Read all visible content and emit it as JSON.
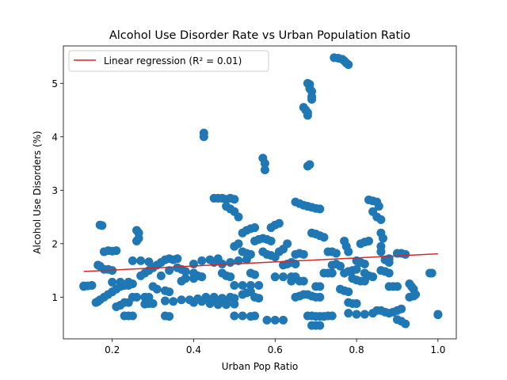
{
  "chart_data": {
    "type": "scatter",
    "title": "Alcohol Use Disorder Rate vs Urban Population Ratio",
    "xlabel": "Urban Pop Ratio",
    "ylabel": "Alcohol Use Disorders (%)",
    "xlim": [
      0.08,
      1.045
    ],
    "ylim": [
      0.22,
      5.7
    ],
    "xticks": [
      0.2,
      0.4,
      0.6,
      0.8,
      1.0
    ],
    "xtick_labels": [
      "0.2",
      "0.4",
      "0.6",
      "0.8",
      "1.0"
    ],
    "yticks": [
      1,
      2,
      3,
      4,
      5
    ],
    "ytick_labels": [
      "1",
      "2",
      "3",
      "4",
      "5"
    ],
    "grid": false,
    "legend_position": "top-left",
    "colors": {
      "points": "#1f77b4",
      "regression": "#d62728"
    },
    "series": [
      {
        "name": "",
        "kind": "scatter",
        "points": [
          [
            0.13,
            1.21
          ],
          [
            0.13,
            1.2
          ],
          [
            0.14,
            1.21
          ],
          [
            0.15,
            1.22
          ],
          [
            0.16,
            0.9
          ],
          [
            0.165,
            0.92
          ],
          [
            0.17,
            0.95
          ],
          [
            0.17,
            2.35
          ],
          [
            0.175,
            2.34
          ],
          [
            0.165,
            1.6
          ],
          [
            0.17,
            1.58
          ],
          [
            0.18,
            1.52
          ],
          [
            0.19,
            1.52
          ],
          [
            0.2,
            1.5
          ],
          [
            0.18,
            1.85
          ],
          [
            0.19,
            1.87
          ],
          [
            0.2,
            1.86
          ],
          [
            0.21,
            1.87
          ],
          [
            0.18,
            1.0
          ],
          [
            0.19,
            1.05
          ],
          [
            0.2,
            1.1
          ],
          [
            0.21,
            1.15
          ],
          [
            0.22,
            1.2
          ],
          [
            0.23,
            1.22
          ],
          [
            0.24,
            1.22
          ],
          [
            0.2,
            1.28
          ],
          [
            0.22,
            1.28
          ],
          [
            0.24,
            1.28
          ],
          [
            0.25,
            1.25
          ],
          [
            0.21,
            0.82
          ],
          [
            0.22,
            0.85
          ],
          [
            0.23,
            0.9
          ],
          [
            0.24,
            0.9
          ],
          [
            0.23,
            0.65
          ],
          [
            0.24,
            0.65
          ],
          [
            0.25,
            0.65
          ],
          [
            0.25,
            1.0
          ],
          [
            0.26,
            1.0
          ],
          [
            0.28,
            1.0
          ],
          [
            0.29,
            1.0
          ],
          [
            0.25,
            1.68
          ],
          [
            0.27,
            1.68
          ],
          [
            0.29,
            1.66
          ],
          [
            0.26,
            2.25
          ],
          [
            0.265,
            2.2
          ],
          [
            0.265,
            2.1
          ],
          [
            0.26,
            2.05
          ],
          [
            0.27,
            1.4
          ],
          [
            0.28,
            1.45
          ],
          [
            0.29,
            1.5
          ],
          [
            0.3,
            1.55
          ],
          [
            0.28,
            0.87
          ],
          [
            0.29,
            0.88
          ],
          [
            0.3,
            0.88
          ],
          [
            0.3,
            1.2
          ],
          [
            0.31,
            1.15
          ],
          [
            0.33,
            1.12
          ],
          [
            0.34,
            1.1
          ],
          [
            0.31,
            1.6
          ],
          [
            0.32,
            1.65
          ],
          [
            0.33,
            1.7
          ],
          [
            0.34,
            1.72
          ],
          [
            0.35,
            1.7
          ],
          [
            0.36,
            1.72
          ],
          [
            0.32,
            1.4
          ],
          [
            0.34,
            1.5
          ],
          [
            0.36,
            1.55
          ],
          [
            0.37,
            1.52
          ],
          [
            0.38,
            1.48
          ],
          [
            0.33,
            0.93
          ],
          [
            0.35,
            0.92
          ],
          [
            0.37,
            0.95
          ],
          [
            0.39,
            0.95
          ],
          [
            0.33,
            0.65
          ],
          [
            0.34,
            0.64
          ],
          [
            0.37,
            1.3
          ],
          [
            0.38,
            1.35
          ],
          [
            0.4,
            1.35
          ],
          [
            0.4,
            1.45
          ],
          [
            0.41,
            1.4
          ],
          [
            0.42,
            1.38
          ],
          [
            0.4,
            0.9
          ],
          [
            0.42,
            0.92
          ],
          [
            0.44,
            0.95
          ],
          [
            0.46,
            0.9
          ],
          [
            0.48,
            0.92
          ],
          [
            0.4,
            1.62
          ],
          [
            0.42,
            1.68
          ],
          [
            0.44,
            1.7
          ],
          [
            0.46,
            1.72
          ],
          [
            0.425,
            4.07
          ],
          [
            0.425,
            4.0
          ],
          [
            0.41,
            0.97
          ],
          [
            0.43,
            1.0
          ],
          [
            0.45,
            1.0
          ],
          [
            0.47,
            0.98
          ],
          [
            0.49,
            1.0
          ],
          [
            0.5,
            0.98
          ],
          [
            0.44,
            0.88
          ],
          [
            0.46,
            0.86
          ],
          [
            0.48,
            0.86
          ],
          [
            0.5,
            0.87
          ],
          [
            0.45,
            2.85
          ],
          [
            0.46,
            2.85
          ],
          [
            0.47,
            2.85
          ],
          [
            0.48,
            2.83
          ],
          [
            0.49,
            2.85
          ],
          [
            0.5,
            2.83
          ],
          [
            0.48,
            2.7
          ],
          [
            0.49,
            2.65
          ],
          [
            0.5,
            2.6
          ],
          [
            0.51,
            2.5
          ],
          [
            0.45,
            1.65
          ],
          [
            0.47,
            1.62
          ],
          [
            0.49,
            1.65
          ],
          [
            0.51,
            1.68
          ],
          [
            0.53,
            1.7
          ],
          [
            0.47,
            1.45
          ],
          [
            0.48,
            1.4
          ],
          [
            0.49,
            1.38
          ],
          [
            0.5,
            1.22
          ],
          [
            0.52,
            1.22
          ],
          [
            0.54,
            1.22
          ],
          [
            0.56,
            1.22
          ],
          [
            0.5,
            0.65
          ],
          [
            0.52,
            0.65
          ],
          [
            0.54,
            0.64
          ],
          [
            0.55,
            0.65
          ],
          [
            0.5,
            1.95
          ],
          [
            0.51,
            2.0
          ],
          [
            0.52,
            1.85
          ],
          [
            0.53,
            1.82
          ],
          [
            0.54,
            1.8
          ],
          [
            0.52,
            2.2
          ],
          [
            0.53,
            2.25
          ],
          [
            0.54,
            2.28
          ],
          [
            0.55,
            2.3
          ],
          [
            0.52,
            1.05
          ],
          [
            0.53,
            1.08
          ],
          [
            0.54,
            1.1
          ],
          [
            0.55,
            1.0
          ],
          [
            0.56,
            0.98
          ],
          [
            0.54,
            1.45
          ],
          [
            0.55,
            1.42
          ],
          [
            0.55,
            2.05
          ],
          [
            0.56,
            2.08
          ],
          [
            0.57,
            2.1
          ],
          [
            0.58,
            2.08
          ],
          [
            0.59,
            2.05
          ],
          [
            0.57,
            3.6
          ],
          [
            0.575,
            3.5
          ],
          [
            0.575,
            3.38
          ],
          [
            0.57,
            1.85
          ],
          [
            0.58,
            1.8
          ],
          [
            0.59,
            1.78
          ],
          [
            0.6,
            1.75
          ],
          [
            0.58,
            0.57
          ],
          [
            0.6,
            0.57
          ],
          [
            0.62,
            0.57
          ],
          [
            0.59,
            2.3
          ],
          [
            0.6,
            2.35
          ],
          [
            0.61,
            2.38
          ],
          [
            0.6,
            1.38
          ],
          [
            0.62,
            1.38
          ],
          [
            0.64,
            1.38
          ],
          [
            0.65,
            1.38
          ],
          [
            0.61,
            1.85
          ],
          [
            0.62,
            1.9
          ],
          [
            0.63,
            2.0
          ],
          [
            0.62,
            1.6
          ],
          [
            0.63,
            1.62
          ],
          [
            0.64,
            1.65
          ],
          [
            0.65,
            1.62
          ],
          [
            0.64,
            1.3
          ],
          [
            0.66,
            1.3
          ],
          [
            0.67,
            1.3
          ],
          [
            0.65,
            2.78
          ],
          [
            0.66,
            2.75
          ],
          [
            0.67,
            2.72
          ],
          [
            0.68,
            2.7
          ],
          [
            0.69,
            2.68
          ],
          [
            0.7,
            2.66
          ],
          [
            0.71,
            2.65
          ],
          [
            0.65,
            1.0
          ],
          [
            0.66,
            1.02
          ],
          [
            0.67,
            1.05
          ],
          [
            0.68,
            1.05
          ],
          [
            0.69,
            1.02
          ],
          [
            0.7,
            1.0
          ],
          [
            0.71,
            1.0
          ],
          [
            0.65,
            1.8
          ],
          [
            0.66,
            1.82
          ],
          [
            0.67,
            1.8
          ],
          [
            0.67,
            4.55
          ],
          [
            0.675,
            4.5
          ],
          [
            0.68,
            4.45
          ],
          [
            0.68,
            4.4
          ],
          [
            0.68,
            5.0
          ],
          [
            0.685,
            4.98
          ],
          [
            0.685,
            4.9
          ],
          [
            0.69,
            4.85
          ],
          [
            0.69,
            4.75
          ],
          [
            0.69,
            4.7
          ],
          [
            0.68,
            3.45
          ],
          [
            0.685,
            3.48
          ],
          [
            0.68,
            0.65
          ],
          [
            0.69,
            0.65
          ],
          [
            0.7,
            0.64
          ],
          [
            0.71,
            0.64
          ],
          [
            0.72,
            0.64
          ],
          [
            0.73,
            0.65
          ],
          [
            0.74,
            0.65
          ],
          [
            0.69,
            0.47
          ],
          [
            0.7,
            0.47
          ],
          [
            0.71,
            0.47
          ],
          [
            0.69,
            2.2
          ],
          [
            0.7,
            2.18
          ],
          [
            0.71,
            2.15
          ],
          [
            0.72,
            2.12
          ],
          [
            0.7,
            1.2
          ],
          [
            0.71,
            1.2
          ],
          [
            0.72,
            1.45
          ],
          [
            0.73,
            1.45
          ],
          [
            0.74,
            1.45
          ],
          [
            0.73,
            1.85
          ],
          [
            0.74,
            1.85
          ],
          [
            0.75,
            1.82
          ],
          [
            0.74,
            1.6
          ],
          [
            0.75,
            1.62
          ],
          [
            0.76,
            1.58
          ],
          [
            0.745,
            5.48
          ],
          [
            0.755,
            5.47
          ],
          [
            0.765,
            5.45
          ],
          [
            0.77,
            5.42
          ],
          [
            0.775,
            5.38
          ],
          [
            0.78,
            5.35
          ],
          [
            0.76,
            1.15
          ],
          [
            0.77,
            1.12
          ],
          [
            0.78,
            1.1
          ],
          [
            0.77,
            2.05
          ],
          [
            0.775,
            1.95
          ],
          [
            0.78,
            1.85
          ],
          [
            0.77,
            1.45
          ],
          [
            0.78,
            1.48
          ],
          [
            0.79,
            1.5
          ],
          [
            0.8,
            1.52
          ],
          [
            0.78,
            0.9
          ],
          [
            0.79,
            0.88
          ],
          [
            0.8,
            0.88
          ],
          [
            0.78,
            0.7
          ],
          [
            0.8,
            0.68
          ],
          [
            0.82,
            0.68
          ],
          [
            0.84,
            0.7
          ],
          [
            0.79,
            1.35
          ],
          [
            0.8,
            1.32
          ],
          [
            0.81,
            1.3
          ],
          [
            0.82,
            1.3
          ],
          [
            0.8,
            1.68
          ],
          [
            0.81,
            1.65
          ],
          [
            0.82,
            1.62
          ],
          [
            0.81,
            2.0
          ],
          [
            0.82,
            2.03
          ],
          [
            0.83,
            2.05
          ],
          [
            0.82,
            1.45
          ],
          [
            0.83,
            1.4
          ],
          [
            0.84,
            1.38
          ],
          [
            0.83,
            2.82
          ],
          [
            0.84,
            2.8
          ],
          [
            0.85,
            2.78
          ],
          [
            0.855,
            2.7
          ],
          [
            0.84,
            2.6
          ],
          [
            0.85,
            2.5
          ],
          [
            0.86,
            2.45
          ],
          [
            0.85,
            0.75
          ],
          [
            0.86,
            0.75
          ],
          [
            0.87,
            0.72
          ],
          [
            0.88,
            0.7
          ],
          [
            0.89,
            0.72
          ],
          [
            0.9,
            0.75
          ],
          [
            0.91,
            0.78
          ],
          [
            0.86,
            2.2
          ],
          [
            0.865,
            2.1
          ],
          [
            0.86,
            1.95
          ],
          [
            0.86,
            1.85
          ],
          [
            0.86,
            1.5
          ],
          [
            0.87,
            1.48
          ],
          [
            0.88,
            1.45
          ],
          [
            0.87,
            1.7
          ],
          [
            0.88,
            1.72
          ],
          [
            0.88,
            1.65
          ],
          [
            0.88,
            1.2
          ],
          [
            0.89,
            1.2
          ],
          [
            0.9,
            1.2
          ],
          [
            0.9,
            1.82
          ],
          [
            0.91,
            1.82
          ],
          [
            0.92,
            1.8
          ],
          [
            0.9,
            0.58
          ],
          [
            0.91,
            0.55
          ],
          [
            0.92,
            0.5
          ],
          [
            0.93,
            1.25
          ],
          [
            0.935,
            1.2
          ],
          [
            0.94,
            1.15
          ],
          [
            0.93,
            1.0
          ],
          [
            0.94,
            1.02
          ],
          [
            0.945,
            1.05
          ],
          [
            0.98,
            1.45
          ],
          [
            0.985,
            1.45
          ],
          [
            1.0,
            0.67
          ],
          [
            1.0,
            0.68
          ]
        ]
      },
      {
        "name": "Linear regression (R² = 0.01)",
        "kind": "line",
        "points": [
          [
            0.13,
            1.48
          ],
          [
            1.0,
            1.81
          ]
        ]
      }
    ]
  }
}
